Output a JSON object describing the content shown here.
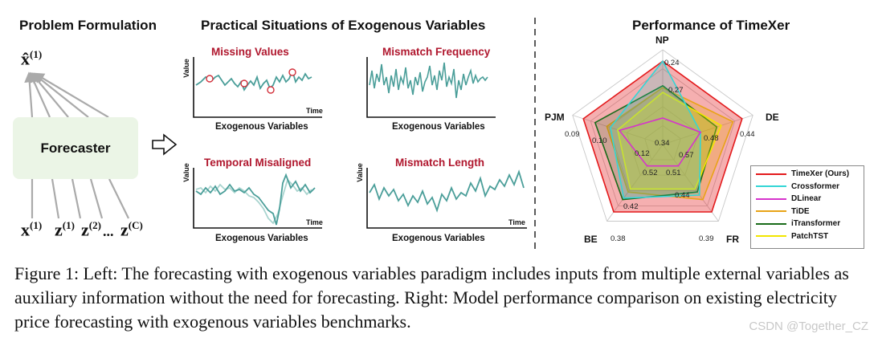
{
  "left": {
    "title": "Problem Formulation",
    "output_var": "x̂",
    "output_sup": "(1)",
    "forecaster": "Forecaster",
    "inputs": [
      {
        "base": "x",
        "sup": "(1)"
      },
      {
        "base": "z",
        "sup": "(1)"
      },
      {
        "base": "z",
        "sup": "(2)"
      },
      {
        "base": "...",
        "sup": ""
      },
      {
        "base": "z",
        "sup": "(C)"
      }
    ]
  },
  "middle": {
    "title": "Practical Situations of Exogenous Variables",
    "panels": [
      {
        "title": "Missing Values",
        "ylabel": "Value",
        "xlabel": "Time",
        "caption": "Exogenous Variables"
      },
      {
        "title": "Mismatch Frequency",
        "ylabel": "",
        "xlabel": "",
        "caption": "Exogenous Variables"
      },
      {
        "title": "Temporal Misaligned",
        "ylabel": "Value",
        "xlabel": "Time",
        "caption": "Exogenous Variables"
      },
      {
        "title": "Mismatch Length",
        "ylabel": "Value",
        "xlabel": "Time",
        "caption": "Exogenous Variables"
      }
    ]
  },
  "right": {
    "title": "Performance of TimeXer",
    "axes": [
      "NP",
      "DE",
      "FR",
      "BE",
      "PJM"
    ],
    "outer_values": [
      "0.24",
      "0.44",
      "0.39",
      "0.38",
      "0.09"
    ],
    "inner_values": [
      {
        "label": "0.27"
      },
      {
        "label": "0.48"
      },
      {
        "label": "0.44"
      },
      {
        "label": "0.42"
      },
      {
        "label": "0.10"
      },
      {
        "label": "0.34"
      },
      {
        "label": "0.57"
      },
      {
        "label": "0.51"
      },
      {
        "label": "0.52"
      },
      {
        "label": "0.12"
      }
    ],
    "legend": [
      {
        "name": "TimeXer (Ours)",
        "color": "#e31a1c"
      },
      {
        "name": "Crossformer",
        "color": "#33d6d6"
      },
      {
        "name": "DLinear",
        "color": "#d633cc"
      },
      {
        "name": "TiDE",
        "color": "#e8a317"
      },
      {
        "name": "iTransformer",
        "color": "#1a6b1a"
      },
      {
        "name": "PatchTST",
        "color": "#f2e600"
      }
    ],
    "series_levels": {
      "TimeXer (Ours)": [
        0.88,
        0.88,
        0.88,
        0.88,
        0.88
      ],
      "Crossformer": [
        0.88,
        0.42,
        0.66,
        0.7,
        0.58
      ],
      "DLinear": [
        0.28,
        0.42,
        0.28,
        0.28,
        0.48
      ],
      "TiDE": [
        0.6,
        0.78,
        0.72,
        0.62,
        0.62
      ],
      "iTransformer": [
        0.62,
        0.6,
        0.62,
        0.72,
        0.75
      ],
      "PatchTST": [
        0.55,
        0.65,
        0.58,
        0.58,
        0.5
      ]
    }
  },
  "caption": "Figure 1: Left: The forecasting with exogenous variables paradigm includes inputs from multiple external variables as auxiliary information without the need for forecasting. Right: Model performance comparison on existing electricity price forecasting with exogenous variables benchmarks.",
  "watermark": "CSDN @Together_CZ"
}
